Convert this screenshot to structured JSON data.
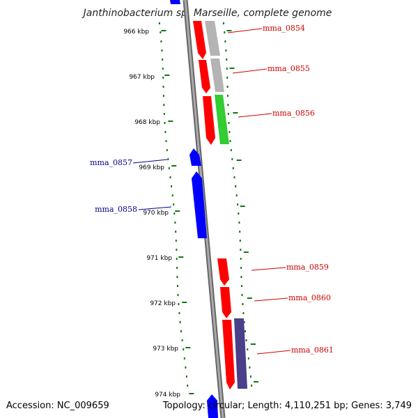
{
  "title": "Janthinobacterium sp. Marseille, complete genome",
  "ticks": [
    "966 kbp",
    "967 kbp",
    "968 kbp",
    "969 kbp",
    "970 kbp",
    "971 kbp",
    "972 kbp",
    "973 kbp",
    "974 kbp"
  ],
  "genes": [
    {
      "name": "mma_0854",
      "strand": "+"
    },
    {
      "name": "mma_0855",
      "strand": "+"
    },
    {
      "name": "mma_0856",
      "strand": "+"
    },
    {
      "name": "mma_0857",
      "strand": "-"
    },
    {
      "name": "mma_0858",
      "strand": "-"
    },
    {
      "name": "mma_0859",
      "strand": "+"
    },
    {
      "name": "mma_0860",
      "strand": "+"
    },
    {
      "name": "mma_0861",
      "strand": "+"
    }
  ],
  "footer": {
    "accession": "Accession: NC_009659",
    "summary": "Topology: circular; Length: 4,110,251 bp; Genes: 3,749"
  },
  "colors": {
    "forward_gene": "#ff0000",
    "reverse_gene": "#0000ff",
    "gray_feature": "#b4b4b4",
    "green_feature": "#33cc33",
    "purple_feature": "#4a3f8a",
    "backbone": "#888888",
    "tick": "#117711"
  }
}
